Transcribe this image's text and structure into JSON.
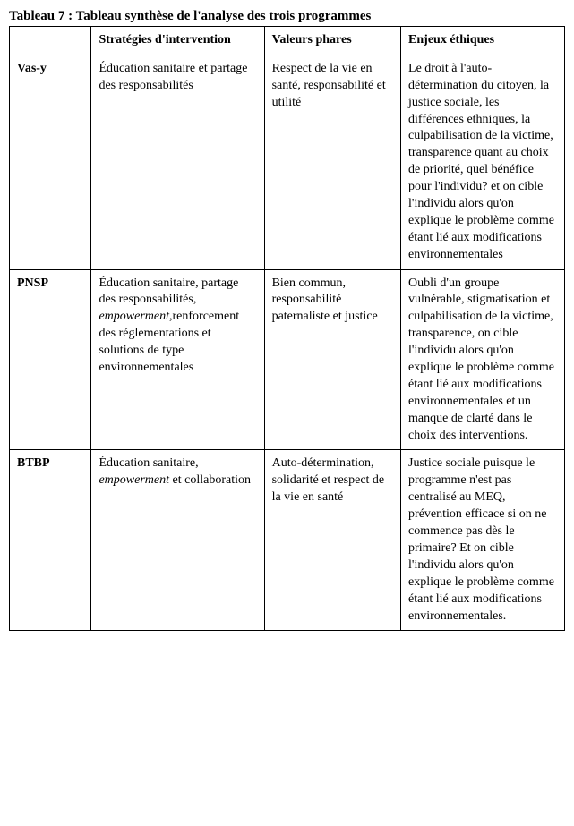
{
  "caption": "Tableau 7 : Tableau synthèse de l'analyse des trois programmes",
  "columns": {
    "c0": "",
    "c1": "Stratégies d'intervention",
    "c2": "Valeurs phares",
    "c3": "Enjeux éthiques"
  },
  "rows": [
    {
      "name": "Vas-y",
      "strategies_a": "Éducation sanitaire et partage des responsabilités",
      "valeurs": "Respect de la vie en santé, responsabilité et utilité",
      "enjeux": "Le droit à l'auto-détermination du citoyen, la justice sociale, les différences ethniques, la culpabilisation de la victime, transparence quant au choix de priorité, quel bénéfice pour l'individu? et on cible l'individu alors qu'on explique le problème comme étant lié aux modifications environnementales"
    },
    {
      "name": "PNSP",
      "strategies_a": "Éducation sanitaire, partage des responsabilités, ",
      "strategies_em": "empowerment",
      "strategies_b": ",renforcement des réglementations et solutions de type environnementales",
      "valeurs": "Bien commun, responsabilité paternaliste et justice",
      "enjeux": "Oubli d'un groupe vulnérable, stigmatisation et culpabilisation de la victime, transparence, on cible l'individu alors qu'on explique le problème comme étant lié aux modifications environnementales et un manque de clarté dans le choix des interventions."
    },
    {
      "name": "BTBP",
      "strategies_a": "Éducation sanitaire, ",
      "strategies_em": "empowerment",
      "strategies_b": " et collaboration",
      "valeurs": "Auto-détermination, solidarité et respect de la vie en santé",
      "enjeux": "Justice sociale puisque le programme n'est pas centralisé au MEQ, prévention efficace si on ne commence pas dès le primaire? Et on cible l'individu alors qu'on explique le problème comme étant lié aux modifications environnementales."
    }
  ]
}
